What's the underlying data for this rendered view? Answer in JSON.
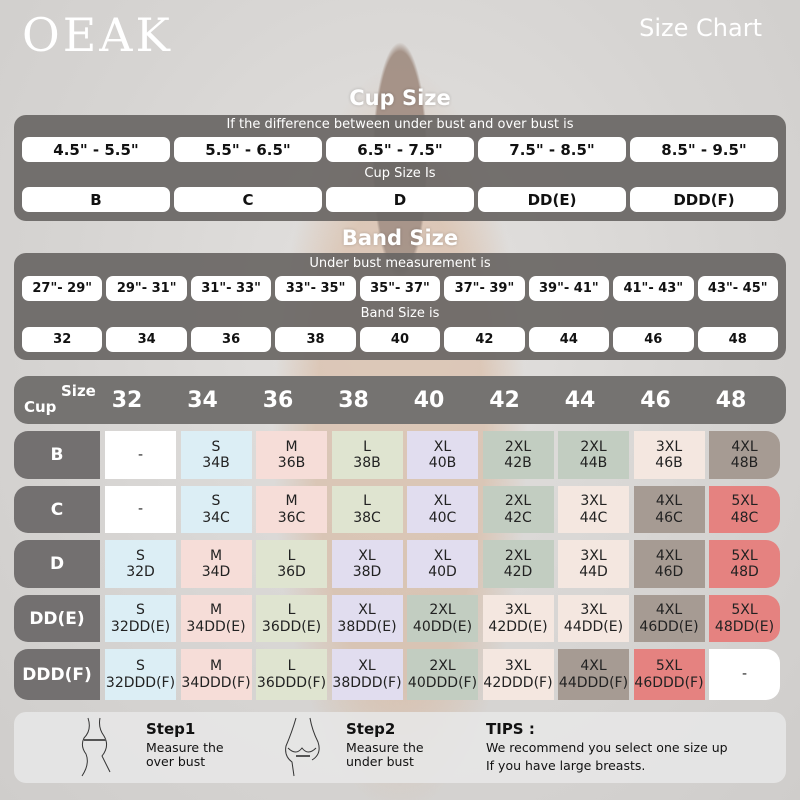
{
  "header": {
    "logo": "OEAK",
    "title": "Size Chart"
  },
  "cup": {
    "title": "Cup Size",
    "caption1": "If the  difference between under bust and over bust is",
    "ranges": [
      "4.5\" -  5.5\"",
      "5.5\" -  6.5\"",
      "6.5\" -  7.5\"",
      "7.5\" -  8.5\"",
      "8.5\" -  9.5\""
    ],
    "caption2": "Cup Size Is",
    "sizes": [
      "B",
      "C",
      "D",
      "DD(E)",
      "DDD(F)"
    ]
  },
  "band": {
    "title": "Band Size",
    "caption1": "Under bust measurement is",
    "ranges": [
      "27\"- 29\"",
      "29\"- 31\"",
      "31\"- 33\"",
      "33\"- 35\"",
      "35\"- 37\"",
      "37\"- 39\"",
      "39\"- 41\"",
      "41\"- 43\"",
      "43\"- 45\""
    ],
    "caption2": "Band Size is",
    "sizes": [
      "32",
      "34",
      "36",
      "38",
      "40",
      "42",
      "44",
      "46",
      "48"
    ]
  },
  "table": {
    "corner_size": "Size",
    "corner_cup": "Cup",
    "columns": [
      "32",
      "34",
      "36",
      "38",
      "40",
      "42",
      "44",
      "46",
      "48"
    ],
    "rows": [
      {
        "cup": "B",
        "cells": [
          [
            "-",
            ""
          ],
          [
            "S",
            "34B"
          ],
          [
            "M",
            "36B"
          ],
          [
            "L",
            "38B"
          ],
          [
            "XL",
            "40B"
          ],
          [
            "2XL",
            "42B"
          ],
          [
            "2XL",
            "44B"
          ],
          [
            "3XL",
            "46B"
          ],
          [
            "4XL",
            "48B"
          ]
        ]
      },
      {
        "cup": "C",
        "cells": [
          [
            "-",
            ""
          ],
          [
            "S",
            "34C"
          ],
          [
            "M",
            "36C"
          ],
          [
            "L",
            "38C"
          ],
          [
            "XL",
            "40C"
          ],
          [
            "2XL",
            "42C"
          ],
          [
            "3XL",
            "44C"
          ],
          [
            "4XL",
            "46C"
          ],
          [
            "5XL",
            "48C"
          ]
        ]
      },
      {
        "cup": "D",
        "cells": [
          [
            "S",
            "32D"
          ],
          [
            "M",
            "34D"
          ],
          [
            "L",
            "36D"
          ],
          [
            "XL",
            "38D"
          ],
          [
            "XL",
            "40D"
          ],
          [
            "2XL",
            "42D"
          ],
          [
            "3XL",
            "44D"
          ],
          [
            "4XL",
            "46D"
          ],
          [
            "5XL",
            "48D"
          ]
        ]
      },
      {
        "cup": "DD(E)",
        "cells": [
          [
            "S",
            "32DD(E)"
          ],
          [
            "M",
            "34DD(E)"
          ],
          [
            "L",
            "36DD(E)"
          ],
          [
            "XL",
            "38DD(E)"
          ],
          [
            "2XL",
            "40DD(E)"
          ],
          [
            "3XL",
            "42DD(E)"
          ],
          [
            "3XL",
            "44DD(E)"
          ],
          [
            "4XL",
            "46DD(E)"
          ],
          [
            "5XL",
            "48DD(E)"
          ]
        ]
      },
      {
        "cup": "DDD(F)",
        "cells": [
          [
            "S",
            "32DDD(F)"
          ],
          [
            "M",
            "34DDD(F)"
          ],
          [
            "L",
            "36DDD(F)"
          ],
          [
            "XL",
            "38DDD(F)"
          ],
          [
            "2XL",
            "40DDD(F)"
          ],
          [
            "3XL",
            "42DDD(F)"
          ],
          [
            "4XL",
            "44DDD(F)"
          ],
          [
            "5XL",
            "46DDD(F)"
          ],
          [
            "-",
            ""
          ]
        ]
      }
    ]
  },
  "size_colors": {
    "-": "#ffffff",
    "S": "#dceef5",
    "M": "#f6ddd8",
    "L": "#dfe4d0",
    "XL": "#e1ddef",
    "2XL": "#c2cdc1",
    "3XL": "#f4e7e0",
    "4XL": "#a69b93",
    "5XL": "#e58280"
  },
  "footer": {
    "step1_title": "Step1",
    "step1_text": "Measure the over bust",
    "step2_title": "Step2",
    "step2_text": "Measure the under bust",
    "tips_title": "TIPS :",
    "tips_line1": "We recommend you select one size up",
    "tips_line2": "If you have large breasts."
  }
}
